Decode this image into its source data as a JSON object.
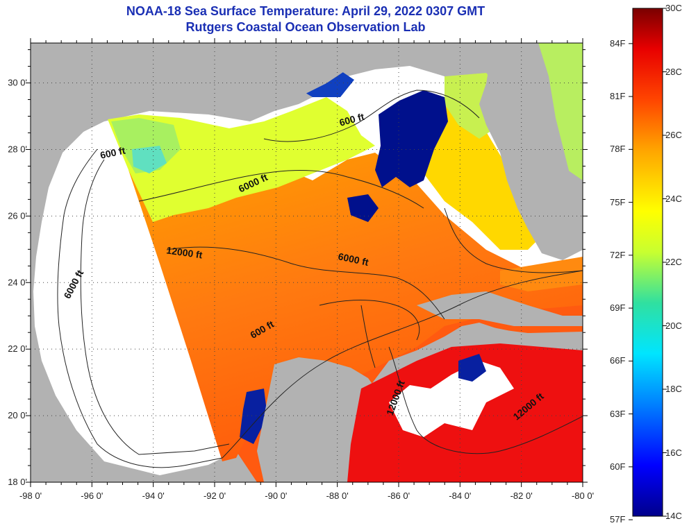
{
  "title": "NOAA-18 Sea Surface Temperature:  April 29, 2022 0307 GMT",
  "subtitle": "Rutgers Coastal Ocean Observation Lab",
  "axes": {
    "lon_ticks": [
      "-98 0'",
      "-96 0'",
      "-94 0'",
      "-92 0'",
      "-90 0'",
      "-88 0'",
      "-86 0'",
      "-84 0'",
      "-82 0'",
      "-80 0'"
    ],
    "lat_ticks": [
      "18 0'",
      "20 0'",
      "22 0'",
      "24 0'",
      "26 0'",
      "28 0'",
      "30 0'"
    ],
    "lon_range": [
      -98,
      -80
    ],
    "lat_range": [
      18,
      31.2
    ],
    "grid": "dotted"
  },
  "contour_labels": [
    {
      "text": "600 ft",
      "lon": -95.3,
      "lat": 27.8,
      "rot": -12
    },
    {
      "text": "600 ft",
      "lon": -87.5,
      "lat": 28.8,
      "rot": -15
    },
    {
      "text": "6000 ft",
      "lon": -90.7,
      "lat": 26.9,
      "rot": -25
    },
    {
      "text": "12000 ft",
      "lon": -93.0,
      "lat": 24.8,
      "rot": 8
    },
    {
      "text": "6000 ft",
      "lon": -87.5,
      "lat": 24.6,
      "rot": 12
    },
    {
      "text": "6000 ft",
      "lon": -96.5,
      "lat": 23.9,
      "rot": -62
    },
    {
      "text": "600 ft",
      "lon": -90.4,
      "lat": 22.5,
      "rot": -30
    },
    {
      "text": "12000 ft",
      "lon": -86.0,
      "lat": 20.5,
      "rot": -70
    },
    {
      "text": "12000 ft",
      "lon": -81.7,
      "lat": 20.2,
      "rot": -40
    }
  ],
  "colorbar": {
    "fahrenheit_labels": [
      "84F",
      "81F",
      "78F",
      "75F",
      "72F",
      "69F",
      "66F",
      "63F",
      "60F",
      "57F"
    ],
    "celsius_labels": [
      "30C",
      "28C",
      "26C",
      "24C",
      "22C",
      "20C",
      "18C",
      "16C",
      "14C"
    ],
    "range_c": [
      14,
      30
    ],
    "colors": [
      "#00008b",
      "#0000ff",
      "#0080ff",
      "#00e5ff",
      "#30e0a0",
      "#c8ff30",
      "#ffff00",
      "#ffa500",
      "#ff4500",
      "#e80000",
      "#7a0000"
    ]
  },
  "colors": {
    "land": "#b2b2b2",
    "no_data": "#ffffff",
    "title": "#1a2fb4"
  }
}
